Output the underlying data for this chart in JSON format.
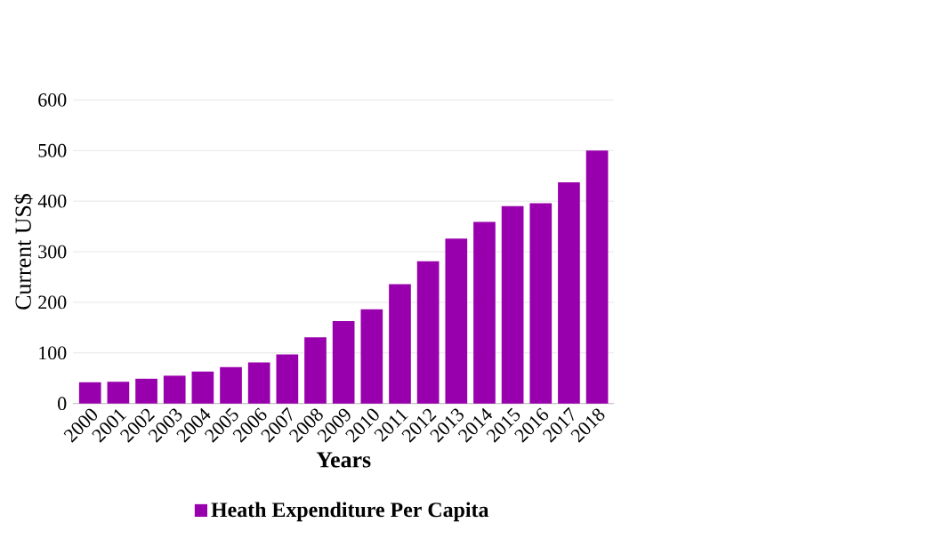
{
  "chart_data": {
    "type": "bar",
    "xlabel": "Years",
    "ylabel": "Current US$",
    "categories": [
      "2000",
      "2001",
      "2002",
      "2003",
      "2004",
      "2005",
      "2006",
      "2007",
      "2008",
      "2009",
      "2010",
      "2011",
      "2012",
      "2013",
      "2014",
      "2015",
      "2016",
      "2017",
      "2018"
    ],
    "series": [
      {
        "name": "Heath Expenditure Per Capita",
        "color": "#9900ad",
        "values": [
          42,
          43,
          49,
          55,
          63,
          72,
          81,
          97,
          131,
          163,
          186,
          236,
          281,
          326,
          359,
          390,
          396,
          437,
          500
        ]
      }
    ],
    "ylim": [
      0,
      600
    ],
    "yticks": [
      0,
      100,
      200,
      300,
      400,
      500,
      600
    ],
    "grid": "y",
    "legend": "bottom"
  }
}
